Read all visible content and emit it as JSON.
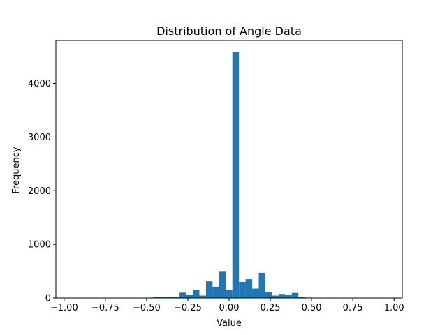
{
  "chart_data": {
    "type": "bar",
    "title": "Distribution of Angle Data",
    "xlabel": "Value",
    "ylabel": "Frequency",
    "xlim": [
      -1.05,
      1.05
    ],
    "ylim": [
      0,
      4800
    ],
    "xticks": [
      -1.0,
      -0.75,
      -0.5,
      -0.25,
      0.0,
      0.25,
      0.5,
      0.75,
      1.0
    ],
    "xtick_labels": [
      "−1.00",
      "−0.75",
      "−0.50",
      "−0.25",
      "0.00",
      "0.25",
      "0.50",
      "0.75",
      "1.00"
    ],
    "yticks": [
      0,
      1000,
      2000,
      3000,
      4000
    ],
    "ytick_labels": [
      "0",
      "1000",
      "2000",
      "3000",
      "4000"
    ],
    "grid": false,
    "bar_color": "#1f77b4",
    "bins": [
      {
        "x0": -0.5,
        "x1": -0.46,
        "count": 8
      },
      {
        "x0": -0.46,
        "x1": -0.42,
        "count": 15
      },
      {
        "x0": -0.42,
        "x1": -0.38,
        "count": 20
      },
      {
        "x0": -0.38,
        "x1": -0.34,
        "count": 25
      },
      {
        "x0": -0.34,
        "x1": -0.3,
        "count": 25
      },
      {
        "x0": -0.3,
        "x1": -0.26,
        "count": 100
      },
      {
        "x0": -0.26,
        "x1": -0.22,
        "count": 65
      },
      {
        "x0": -0.22,
        "x1": -0.18,
        "count": 145
      },
      {
        "x0": -0.18,
        "x1": -0.14,
        "count": 45
      },
      {
        "x0": -0.14,
        "x1": -0.1,
        "count": 310
      },
      {
        "x0": -0.1,
        "x1": -0.06,
        "count": 210
      },
      {
        "x0": -0.06,
        "x1": -0.02,
        "count": 490
      },
      {
        "x0": -0.02,
        "x1": 0.02,
        "count": 150
      },
      {
        "x0": 0.02,
        "x1": 0.06,
        "count": 4580
      },
      {
        "x0": 0.06,
        "x1": 0.1,
        "count": 300
      },
      {
        "x0": 0.1,
        "x1": 0.14,
        "count": 350
      },
      {
        "x0": 0.14,
        "x1": 0.18,
        "count": 175
      },
      {
        "x0": 0.18,
        "x1": 0.22,
        "count": 470
      },
      {
        "x0": 0.22,
        "x1": 0.26,
        "count": 105
      },
      {
        "x0": 0.26,
        "x1": 0.3,
        "count": 45
      },
      {
        "x0": 0.3,
        "x1": 0.34,
        "count": 75
      },
      {
        "x0": 0.34,
        "x1": 0.38,
        "count": 65
      },
      {
        "x0": 0.38,
        "x1": 0.42,
        "count": 95
      },
      {
        "x0": 0.42,
        "x1": 0.46,
        "count": 15
      },
      {
        "x0": 0.46,
        "x1": 0.5,
        "count": 8
      }
    ]
  }
}
